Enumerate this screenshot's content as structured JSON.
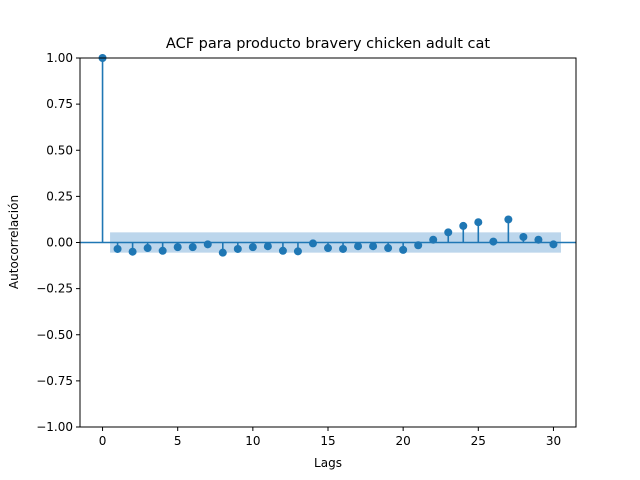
{
  "chart_data": {
    "type": "stem",
    "title": "ACF para producto bravery chicken adult cat",
    "xlabel": "Lags",
    "ylabel": "Autocorrelación",
    "xlim": [
      -1.5,
      31.5
    ],
    "ylim": [
      -1.0,
      1.0
    ],
    "xticks": [
      0,
      5,
      10,
      15,
      20,
      25,
      30
    ],
    "yticks": [
      -1.0,
      -0.75,
      -0.5,
      -0.25,
      0.0,
      0.25,
      0.5,
      0.75,
      1.0
    ],
    "xtick_labels": [
      "0",
      "5",
      "10",
      "15",
      "20",
      "25",
      "30"
    ],
    "ytick_labels": [
      "−1.00",
      "−0.75",
      "−0.50",
      "−0.25",
      "0.00",
      "0.25",
      "0.50",
      "0.75",
      "1.00"
    ],
    "grid": false,
    "lags": [
      0,
      1,
      2,
      3,
      4,
      5,
      6,
      7,
      8,
      9,
      10,
      11,
      12,
      13,
      14,
      15,
      16,
      17,
      18,
      19,
      20,
      21,
      22,
      23,
      24,
      25,
      26,
      27,
      28,
      29,
      30
    ],
    "values": [
      1.0,
      -0.035,
      -0.05,
      -0.03,
      -0.045,
      -0.025,
      -0.025,
      -0.01,
      -0.055,
      -0.035,
      -0.025,
      -0.02,
      -0.045,
      -0.048,
      -0.005,
      -0.03,
      -0.035,
      -0.02,
      -0.02,
      -0.03,
      -0.04,
      -0.015,
      0.015,
      0.055,
      0.09,
      0.11,
      0.005,
      0.125,
      0.03,
      0.015,
      -0.01
    ],
    "confidence_band": {
      "x_start": 0.5,
      "x_end": 30.5,
      "lower": -0.055,
      "upper": 0.055
    },
    "colors": {
      "stem": "#1f77b4",
      "band": "#a6c8e6",
      "zero_line": "#1f77b4"
    }
  }
}
